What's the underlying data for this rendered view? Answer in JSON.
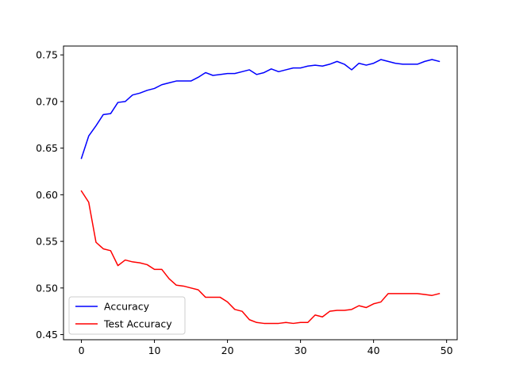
{
  "chart_data": {
    "type": "line",
    "title": "",
    "xlabel": "",
    "ylabel": "",
    "xlim": [
      -2.45,
      51.45
    ],
    "ylim": [
      0.4445,
      0.7595
    ],
    "grid": false,
    "legend_position": "lower-left",
    "xticks": [
      0,
      10,
      20,
      30,
      40,
      50
    ],
    "xtick_labels": [
      "0",
      "10",
      "20",
      "30",
      "40",
      "50"
    ],
    "yticks": [
      0.45,
      0.5,
      0.55,
      0.6,
      0.65,
      0.7,
      0.75
    ],
    "ytick_labels": [
      "0.45",
      "0.50",
      "0.55",
      "0.60",
      "0.65",
      "0.70",
      "0.75"
    ],
    "x": [
      0,
      1,
      2,
      3,
      4,
      5,
      6,
      7,
      8,
      9,
      10,
      11,
      12,
      13,
      14,
      15,
      16,
      17,
      18,
      19,
      20,
      21,
      22,
      23,
      24,
      25,
      26,
      27,
      28,
      29,
      30,
      31,
      32,
      33,
      34,
      35,
      36,
      37,
      38,
      39,
      40,
      41,
      42,
      43,
      44,
      45,
      46,
      47,
      48,
      49
    ],
    "series": [
      {
        "name": "Accuracy",
        "color": "#0000ff",
        "values": [
          0.639,
          0.663,
          0.674,
          0.686,
          0.687,
          0.699,
          0.7,
          0.707,
          0.709,
          0.712,
          0.714,
          0.718,
          0.72,
          0.722,
          0.722,
          0.722,
          0.726,
          0.731,
          0.728,
          0.729,
          0.73,
          0.73,
          0.732,
          0.734,
          0.729,
          0.731,
          0.735,
          0.732,
          0.734,
          0.736,
          0.736,
          0.738,
          0.739,
          0.738,
          0.74,
          0.743,
          0.74,
          0.734,
          0.741,
          0.739,
          0.741,
          0.745,
          0.743,
          0.741,
          0.74,
          0.74,
          0.74,
          0.743,
          0.745,
          0.743
        ]
      },
      {
        "name": "Test Accuracy",
        "color": "#ff0000",
        "values": [
          0.604,
          0.592,
          0.549,
          0.542,
          0.54,
          0.524,
          0.53,
          0.528,
          0.527,
          0.525,
          0.52,
          0.52,
          0.51,
          0.503,
          0.502,
          0.5,
          0.498,
          0.49,
          0.49,
          0.49,
          0.485,
          0.477,
          0.475,
          0.466,
          0.463,
          0.462,
          0.462,
          0.462,
          0.463,
          0.462,
          0.463,
          0.463,
          0.471,
          0.469,
          0.475,
          0.476,
          0.476,
          0.477,
          0.481,
          0.479,
          0.483,
          0.485,
          0.494,
          0.494,
          0.494,
          0.494,
          0.494,
          0.493,
          0.492,
          0.494
        ]
      }
    ]
  }
}
